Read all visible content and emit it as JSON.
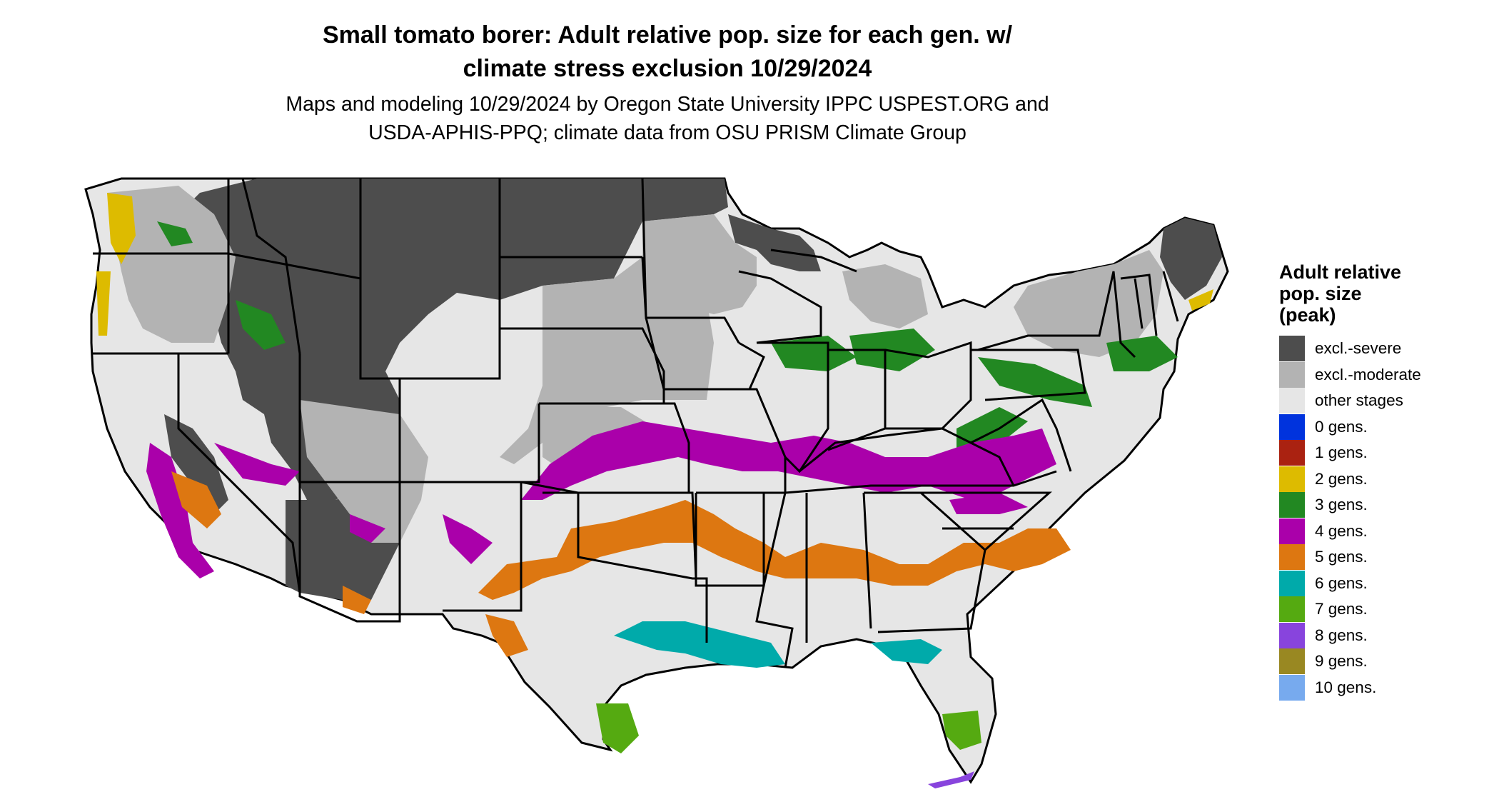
{
  "title": {
    "line1": "Small tomato borer: Adult relative pop. size for each gen. w/",
    "line2": "climate stress exclusion 10/29/2024"
  },
  "subtitle": {
    "line1": "Maps and modeling 10/29/2024 by Oregon State University IPPC USPEST.ORG and",
    "line2": "USDA-APHIS-PPQ; climate data from OSU PRISM Climate Group"
  },
  "legend": {
    "title_lines": [
      "Adult relative",
      "pop. size",
      "(peak)"
    ],
    "items": [
      {
        "label": "excl.-severe",
        "color": "#4d4d4d"
      },
      {
        "label": "excl.-moderate",
        "color": "#b3b3b3"
      },
      {
        "label": "other stages",
        "color": "#e6e6e6"
      },
      {
        "label": "0 gens.",
        "color": "#0033dd"
      },
      {
        "label": "1 gens.",
        "color": "#aa2211"
      },
      {
        "label": "2 gens.",
        "color": "#ddbb00"
      },
      {
        "label": "3 gens.",
        "color": "#228822"
      },
      {
        "label": "4 gens.",
        "color": "#aa00aa"
      },
      {
        "label": "5 gens.",
        "color": "#dd7711"
      },
      {
        "label": "6 gens.",
        "color": "#00aaaa"
      },
      {
        "label": "7 gens.",
        "color": "#55aa11"
      },
      {
        "label": "8 gens.",
        "color": "#8844dd"
      },
      {
        "label": "9 gens.",
        "color": "#998822"
      },
      {
        "label": "10 gens.",
        "color": "#77aaee"
      }
    ]
  }
}
